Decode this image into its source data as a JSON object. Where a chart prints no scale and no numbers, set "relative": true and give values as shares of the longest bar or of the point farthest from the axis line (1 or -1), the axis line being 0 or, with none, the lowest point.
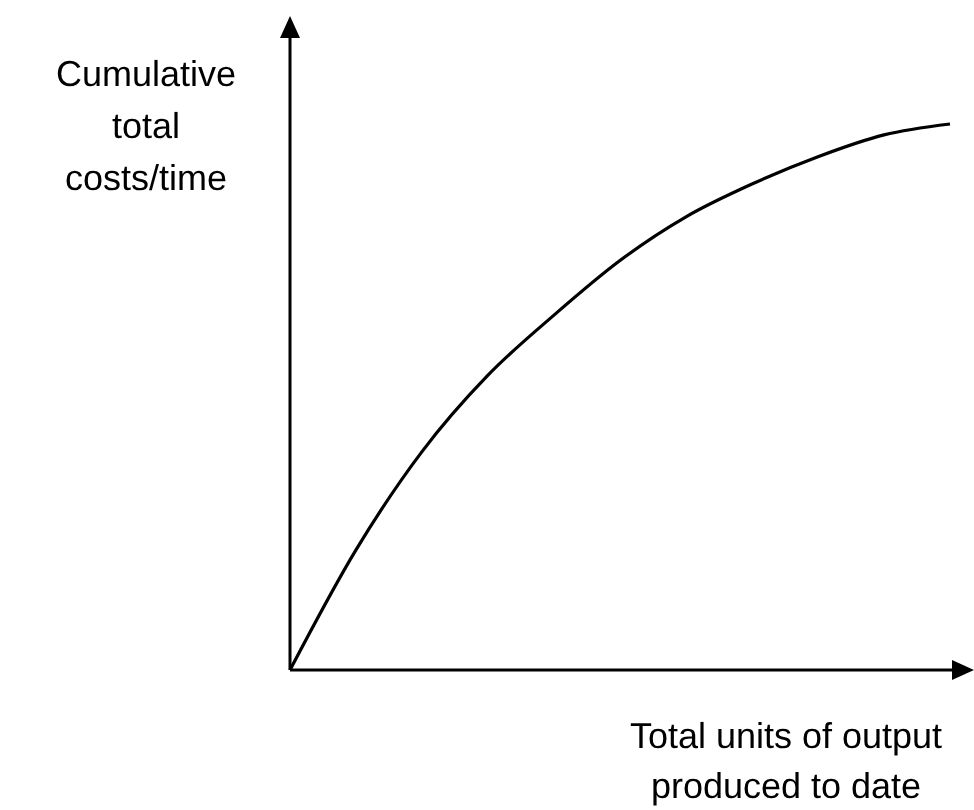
{
  "chart_data": {
    "type": "line",
    "relative": true,
    "xlabel": "Total units of output\nproduced to date",
    "ylabel": "Cumulative\ntotal\ncosts/time",
    "categories": [
      null,
      null,
      null,
      null,
      null,
      null,
      null,
      null,
      null,
      null,
      null
    ],
    "series": [
      {
        "color": "#000000",
        "values": [
          0,
          0.22,
          0.4,
          0.54,
          0.65,
          0.75,
          0.83,
          0.89,
          0.94,
          0.98,
          1.0
        ]
      }
    ],
    "marker": "none",
    "line_style": "solid"
  }
}
